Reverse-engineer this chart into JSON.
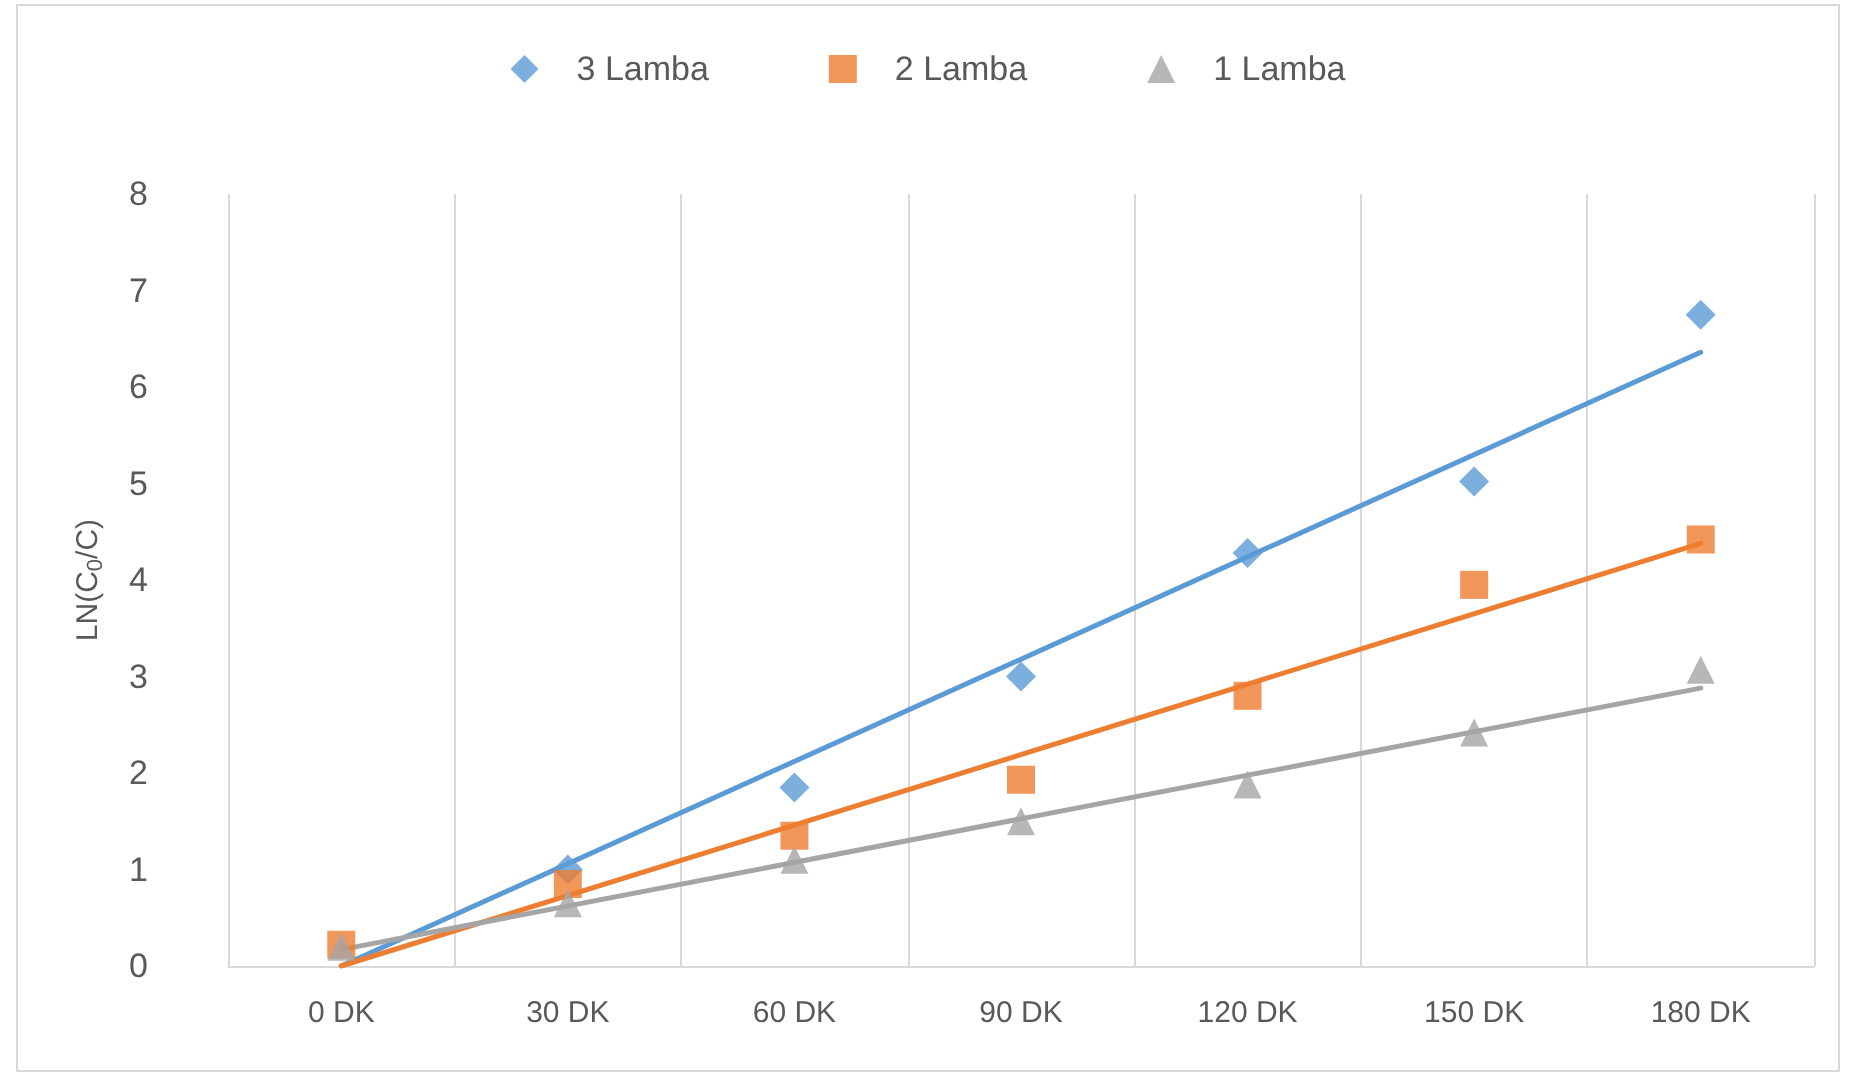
{
  "chart_data": {
    "type": "scatter",
    "ylabel": "LN(C$_{0}$/C)",
    "categories": [
      "0 DK",
      "30 DK",
      "60 DK",
      "90 DK",
      "120 DK",
      "150 DK",
      "180 DK"
    ],
    "series": [
      {
        "name": "3 Lamba",
        "color": "#5b9bd5",
        "marker": "diamond",
        "values": [
          null,
          1.0,
          1.85,
          3.0,
          4.28,
          5.02,
          6.75
        ]
      },
      {
        "name": "2 Lamba",
        "color": "#ed7d31",
        "marker": "square",
        "values": [
          0.22,
          0.85,
          1.35,
          1.93,
          2.8,
          3.95,
          4.42
        ]
      },
      {
        "name": "1 Lamba",
        "color": "#a5a5a5",
        "marker": "triangle",
        "values": [
          0.2,
          0.65,
          1.1,
          1.5,
          1.88,
          2.42,
          3.07
        ]
      },
      {
        "type": "line",
        "color": "#5b9bd5",
        "x": [
          "0 DK",
          "180 DK"
        ],
        "values": [
          0,
          6.36
        ]
      },
      {
        "type": "line",
        "color": "#ed7d31",
        "x": [
          "0 DK",
          "180 DK"
        ],
        "values": [
          0,
          4.38
        ]
      },
      {
        "type": "line",
        "color": "#a5a5a5",
        "x": [
          "0 DK",
          "180 DK"
        ],
        "values": [
          0.17,
          2.88
        ]
      }
    ],
    "ylim": [
      0,
      8
    ],
    "yticks": [
      0,
      1,
      2,
      3,
      4,
      5,
      6,
      7,
      8
    ],
    "grid": "x",
    "legend": "top"
  }
}
